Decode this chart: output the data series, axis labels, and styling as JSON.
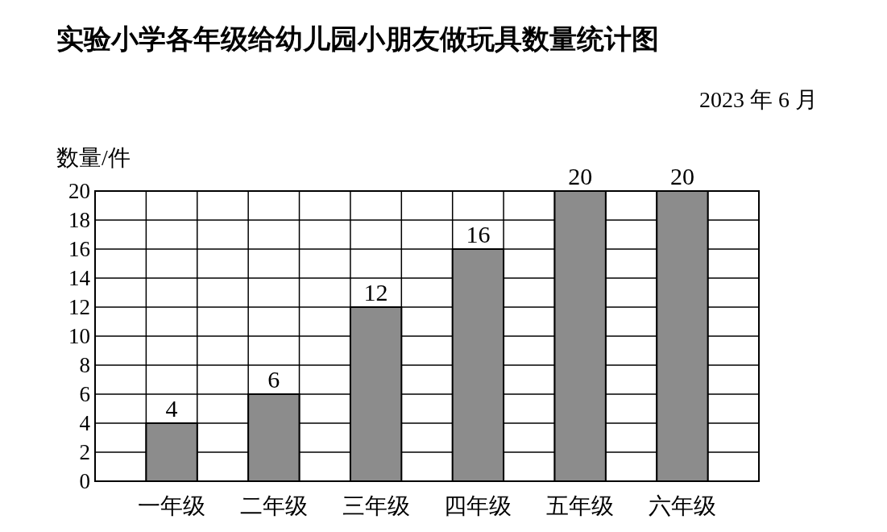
{
  "chart_data": {
    "type": "bar",
    "title": "实验小学各年级给幼儿园小朋友做玩具数量统计图",
    "subtitle": "2023 年 6 月",
    "ylabel": "数量/件",
    "categories": [
      "一年级",
      "二年级",
      "三年级",
      "四年级",
      "五年级",
      "六年级"
    ],
    "values": [
      4,
      6,
      12,
      16,
      20,
      20
    ],
    "color": "#8c8c8c",
    "ylim": [
      0,
      20
    ],
    "yticks": [
      0,
      2,
      4,
      6,
      8,
      10,
      12,
      14,
      16,
      18,
      20
    ],
    "grid": true,
    "data_labels": true
  }
}
